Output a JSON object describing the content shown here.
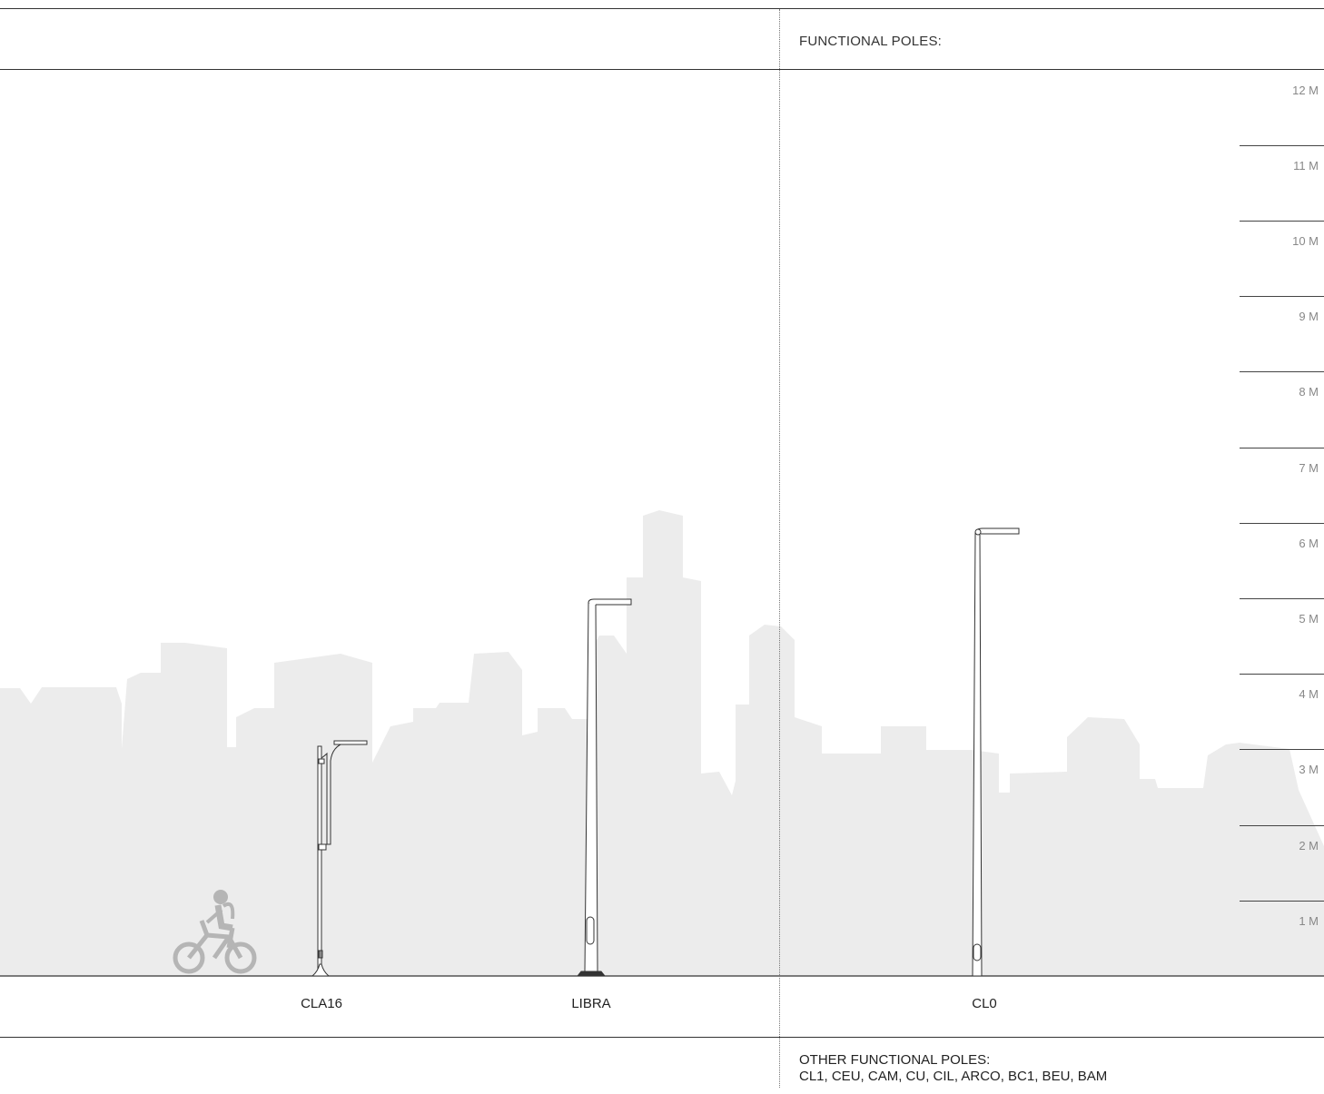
{
  "header": {
    "title": "FUNCTIONAL POLES:"
  },
  "scale": {
    "unit": "M",
    "levels": [
      {
        "value": 12,
        "label": "12 M"
      },
      {
        "value": 11,
        "label": "11 M"
      },
      {
        "value": 10,
        "label": "10 M"
      },
      {
        "value": 9,
        "label": "9 M"
      },
      {
        "value": 8,
        "label": "8 M"
      },
      {
        "value": 7,
        "label": "7 M"
      },
      {
        "value": 6,
        "label": "6 M"
      },
      {
        "value": 5,
        "label": "5 M"
      },
      {
        "value": 4,
        "label": "4 M"
      },
      {
        "value": 3,
        "label": "3 M"
      },
      {
        "value": 2,
        "label": "2 M"
      },
      {
        "value": 1,
        "label": "1 M"
      }
    ]
  },
  "poles": [
    {
      "name": "CLA16"
    },
    {
      "name": "LIBRA"
    },
    {
      "name": "CL0"
    }
  ],
  "footer": {
    "title": "OTHER FUNCTIONAL POLES:",
    "list": "CL1, CEU, CAM, CU, CIL, ARCO, BC1, BEU, BAM"
  },
  "colors": {
    "skyline": "#ececec",
    "lines": "#333333",
    "scale_text": "#888888",
    "cyclist": "#b5b5b5"
  }
}
